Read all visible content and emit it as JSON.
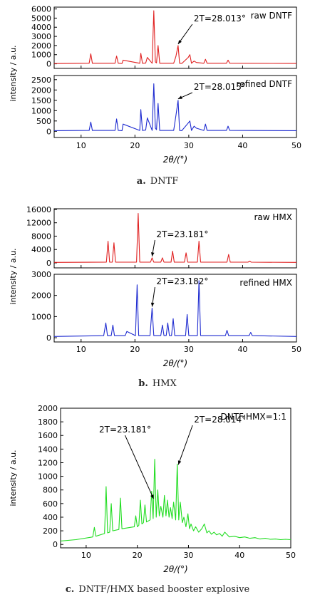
{
  "chart_data": [
    {
      "type": "line",
      "panel": "a",
      "caption_letter": "a.",
      "caption_text": "DNTF",
      "xlabel": "2θ/(°)",
      "xlim": [
        5,
        50
      ],
      "xticks": [
        "10",
        "20",
        "30",
        "40",
        "50"
      ],
      "ylabel": "intensity / a.u.",
      "legend_placement": "top-right",
      "grid": false,
      "subplots": [
        {
          "name": "raw DNTF",
          "color": "#e02020",
          "ylim": [
            -500,
            6200
          ],
          "yticks": [
            "0",
            "1000",
            "2000",
            "3000",
            "4000",
            "5000",
            "6000"
          ],
          "annotation": {
            "text": "2T=28.013°",
            "x": 28.013,
            "y": 2000
          },
          "x": [
            5,
            11.5,
            11.8,
            12.1,
            16.3,
            16.6,
            16.9,
            17.6,
            17.8,
            20.9,
            21.1,
            21.4,
            22.0,
            22.3,
            23.2,
            23.5,
            23.8,
            24.0,
            24.3,
            24.6,
            27.2,
            27.6,
            28.013,
            28.3,
            28.7,
            29.9,
            30.2,
            30.5,
            31.0,
            31.4,
            32.8,
            33.1,
            33.4,
            37.0,
            37.3,
            37.6,
            50
          ],
          "y": [
            30,
            60,
            1100,
            60,
            60,
            850,
            60,
            40,
            400,
            60,
            1150,
            60,
            80,
            700,
            60,
            5800,
            200,
            100,
            2000,
            60,
            60,
            800,
            2000,
            60,
            40,
            700,
            1000,
            60,
            300,
            150,
            60,
            500,
            60,
            60,
            400,
            60,
            40
          ]
        },
        {
          "name": "refined DNTF",
          "color": "#1e2bd0",
          "ylim": [
            -300,
            2700
          ],
          "yticks": [
            "0",
            "500",
            "1000",
            "1500",
            "2000",
            "2500"
          ],
          "annotation": {
            "text": "2T=28.015°",
            "x": 28.015,
            "y": 1500
          },
          "x": [
            5,
            11.5,
            11.8,
            12.1,
            16.3,
            16.6,
            16.9,
            17.6,
            17.8,
            20.9,
            21.1,
            21.4,
            22.0,
            22.3,
            23.2,
            23.5,
            23.8,
            24.0,
            24.3,
            24.6,
            27.2,
            27.6,
            28.015,
            28.3,
            28.7,
            29.9,
            30.2,
            30.5,
            31.0,
            31.4,
            32.8,
            33.1,
            33.4,
            37.0,
            37.3,
            37.6,
            50
          ],
          "y": [
            30,
            40,
            450,
            40,
            40,
            600,
            40,
            30,
            350,
            40,
            1050,
            40,
            60,
            650,
            40,
            2300,
            150,
            80,
            1350,
            40,
            40,
            750,
            1500,
            40,
            30,
            400,
            500,
            40,
            250,
            150,
            40,
            350,
            40,
            40,
            250,
            40,
            30
          ]
        }
      ]
    },
    {
      "type": "line",
      "panel": "b",
      "caption_letter": "b.",
      "caption_text": "HMX",
      "xlabel": "2θ/(°)",
      "xlim": [
        5,
        50
      ],
      "xticks": [
        "10",
        "20",
        "30",
        "40",
        "50"
      ],
      "ylabel": "intensity / a.u.",
      "legend_placement": "top-right",
      "grid": false,
      "subplots": [
        {
          "name": "raw HMX",
          "color": "#e02020",
          "ylim": [
            -1500,
            16200
          ],
          "yticks": [
            "0",
            "4000",
            "8000",
            "12000",
            "16000"
          ],
          "annotation": {
            "text": "2T=23.181°",
            "x": 23.181,
            "y": 1500
          },
          "x": [
            5,
            14.7,
            15.0,
            15.3,
            15.8,
            16.1,
            16.4,
            20.3,
            20.6,
            20.9,
            22.9,
            23.181,
            23.5,
            24.8,
            25.1,
            25.4,
            26.7,
            27.0,
            27.3,
            29.2,
            29.5,
            29.8,
            31.6,
            31.9,
            32.2,
            37.1,
            37.4,
            37.7,
            41.0,
            41.3,
            41.6,
            50
          ],
          "y": [
            150,
            200,
            6500,
            200,
            200,
            6000,
            200,
            200,
            14800,
            200,
            200,
            1500,
            200,
            200,
            1500,
            200,
            200,
            3500,
            200,
            200,
            3000,
            200,
            200,
            6500,
            200,
            200,
            2500,
            200,
            200,
            500,
            200,
            150
          ]
        },
        {
          "name": "refined HMX",
          "color": "#1e2bd0",
          "ylim": [
            -200,
            3000
          ],
          "yticks": [
            "0",
            "1000",
            "2000",
            "3000"
          ],
          "annotation": {
            "text": "2T=23.182°",
            "x": 23.182,
            "y": 1400
          },
          "x": [
            5,
            14.2,
            14.6,
            14.9,
            15.6,
            15.9,
            16.2,
            18.2,
            18.5,
            20.1,
            20.4,
            20.7,
            22.8,
            23.182,
            23.5,
            24.8,
            25.1,
            25.4,
            25.8,
            26.1,
            26.4,
            26.8,
            27.1,
            27.4,
            29.4,
            29.7,
            30.0,
            31.6,
            31.9,
            32.2,
            36.8,
            37.1,
            37.4,
            41.2,
            41.5,
            41.8,
            50
          ],
          "y": [
            60,
            100,
            700,
            100,
            100,
            600,
            100,
            100,
            300,
            100,
            2500,
            100,
            100,
            1400,
            100,
            100,
            600,
            100,
            100,
            700,
            100,
            100,
            900,
            100,
            100,
            1100,
            100,
            100,
            2700,
            100,
            100,
            350,
            100,
            100,
            250,
            100,
            60
          ]
        }
      ]
    },
    {
      "type": "line",
      "panel": "c",
      "caption_letter": "c.",
      "caption_text": "DNTF/HMX based booster explosive",
      "xlabel": "2θ/(°)",
      "xlim": [
        5,
        50
      ],
      "xticks": [
        "10",
        "20",
        "30",
        "40",
        "50"
      ],
      "ylabel": "intensity / a.u.",
      "ylim": [
        -50,
        2000
      ],
      "yticks": [
        "0",
        "200",
        "400",
        "600",
        "800",
        "1000",
        "1200",
        "1400",
        "1600",
        "1800",
        "2000"
      ],
      "legend_placement": "top-right",
      "grid": false,
      "subplots": [
        {
          "name": "DNTF:HMX=1:1",
          "color": "#22dd22",
          "annotations": [
            {
              "text": "2T=23.181°",
              "x": 23.181,
              "y": 650
            },
            {
              "text": "2T=28.014°",
              "x": 28.014,
              "y": 1150
            }
          ],
          "x": [
            5,
            8,
            11.3,
            11.6,
            11.9,
            13.6,
            13.9,
            14.2,
            14.6,
            14.9,
            15.2,
            16.4,
            16.7,
            17.0,
            19.4,
            19.7,
            20.0,
            20.3,
            20.6,
            20.9,
            21.2,
            21.5,
            21.8,
            22.5,
            22.8,
            23.1,
            23.4,
            23.7,
            24.0,
            24.3,
            24.6,
            25.0,
            25.3,
            25.6,
            25.9,
            26.2,
            26.5,
            26.8,
            27.1,
            27.5,
            27.8,
            28.1,
            28.4,
            28.8,
            29.1,
            29.5,
            29.9,
            30.2,
            30.5,
            31.0,
            31.4,
            32.0,
            32.6,
            33.1,
            33.6,
            34.0,
            34.5,
            35.0,
            35.5,
            36.1,
            36.6,
            37.1,
            38.0,
            39.0,
            40.0,
            41.0,
            42.0,
            43.0,
            44.0,
            45.0,
            46.0,
            47.0,
            48.0,
            49.0,
            50
          ],
          "y": [
            50,
            70,
            110,
            250,
            120,
            160,
            850,
            170,
            180,
            600,
            200,
            220,
            680,
            230,
            260,
            420,
            260,
            280,
            650,
            300,
            320,
            580,
            330,
            360,
            780,
            380,
            1250,
            400,
            800,
            420,
            560,
            400,
            720,
            420,
            650,
            400,
            540,
            380,
            620,
            360,
            1180,
            360,
            620,
            320,
            400,
            260,
            450,
            230,
            300,
            200,
            260,
            180,
            230,
            300,
            170,
            200,
            150,
            180,
            140,
            160,
            120,
            180,
            110,
            120,
            100,
            110,
            90,
            100,
            80,
            90,
            75,
            80,
            70,
            75,
            70
          ]
        }
      ]
    }
  ]
}
